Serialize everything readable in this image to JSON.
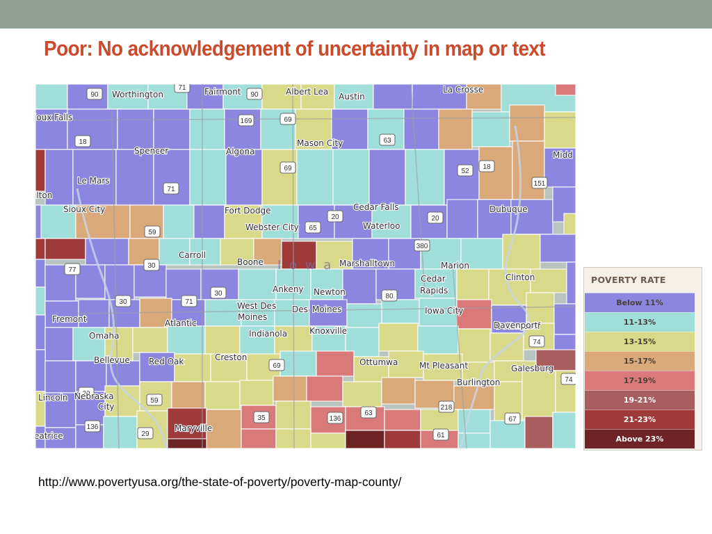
{
  "slide": {
    "title": "Poor:  No acknowledgement of uncertainty in map or text",
    "title_color": "#cc4a2c",
    "source_url": "http://www.povertyusa.org/the-state-of-poverty/poverty-map-county/"
  },
  "legend": {
    "title": "POVERTY RATE",
    "items": [
      {
        "label": "Below 11%",
        "color": "#8c86e0"
      },
      {
        "label": "11-13%",
        "color": "#9fded9"
      },
      {
        "label": "13-15%",
        "color": "#d9d98a"
      },
      {
        "label": "15-17%",
        "color": "#d9a97a"
      },
      {
        "label": "17-19%",
        "color": "#d9797a"
      },
      {
        "label": "19-21%",
        "color": "#a85e5e"
      },
      {
        "label": "21-23%",
        "color": "#9e3a3a"
      },
      {
        "label": "Above 23%",
        "color": "#6e2424"
      }
    ]
  },
  "map": {
    "state_label": "I o w a",
    "places": [
      "Worthington",
      "Fairmont",
      "Albert Lea",
      "Austin",
      "La Crosse",
      "ioux Falls",
      "Spencer",
      "Algona",
      "Mason City",
      "Midd",
      "Le Mars",
      "Sioux City",
      "Fort Dodge",
      "Webster City",
      "Cedar Falls",
      "Waterloo",
      "Dubuque",
      "Carroll",
      "Boone",
      "Marshalltown",
      "Marion",
      "Cedar",
      "Rapids",
      "Iowa City",
      "Clinton",
      "Ankeny",
      "Newton",
      "West Des",
      "Moines",
      "Des",
      "Moines",
      "Indianola",
      "Knoxville",
      "Fremont",
      "Omaha",
      "Atlantic",
      "Bettendorf",
      "Davenport",
      "Bellevue",
      "Red Oak",
      "Creston",
      "Ottumwa",
      "Mt Pleasant",
      "Galesburg",
      "Burlington",
      "Lincoln",
      "Nebraska",
      "City",
      "Maryville",
      "eatrice",
      "ilton"
    ],
    "routes": [
      "90",
      "71",
      "90",
      "169",
      "69",
      "18",
      "63",
      "69",
      "71",
      "52",
      "18",
      "151",
      "59",
      "65",
      "20",
      "20",
      "380",
      "77",
      "30",
      "30",
      "71",
      "80",
      "74",
      "69",
      "59",
      "136",
      "29",
      "35",
      "136",
      "63",
      "61",
      "218",
      "67",
      "74",
      "29",
      "30"
    ]
  }
}
